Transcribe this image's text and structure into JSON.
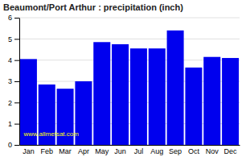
{
  "chart_data": {
    "type": "bar",
    "title": "Beaumont/Port Arthur : precipitation (inch)",
    "categories": [
      "Jan",
      "Feb",
      "Mar",
      "Apr",
      "May",
      "Jun",
      "Jul",
      "Aug",
      "Sep",
      "Oct",
      "Nov",
      "Dec"
    ],
    "values": [
      4.05,
      2.85,
      2.65,
      3.0,
      4.85,
      4.75,
      4.55,
      4.55,
      5.4,
      3.65,
      4.15,
      4.1
    ],
    "color": "#0000ee",
    "ylim": [
      0,
      6
    ],
    "yticks": [
      0,
      1,
      2,
      3,
      4,
      5,
      6
    ],
    "grid": true,
    "annotation": "www.allmetsat.com"
  }
}
